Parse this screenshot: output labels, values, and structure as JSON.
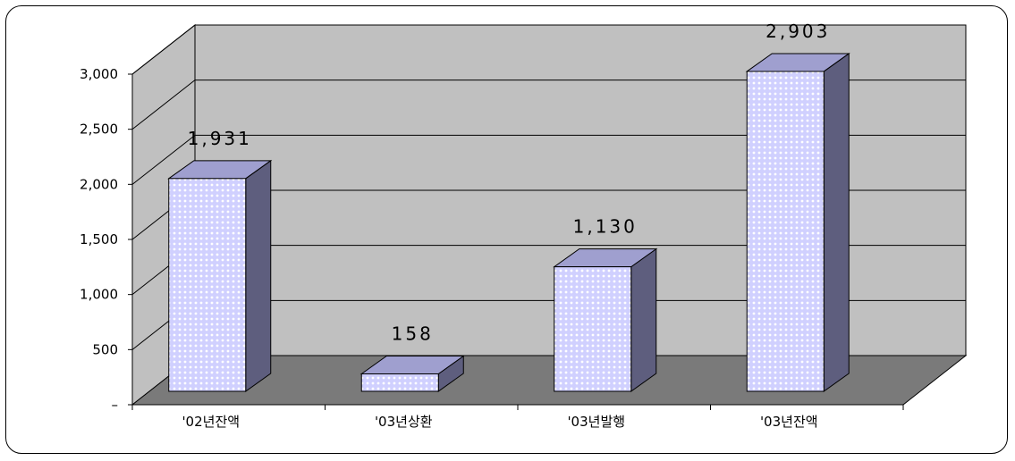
{
  "chart_data": {
    "type": "bar",
    "categories": [
      "'02년잔액",
      "'03년상환",
      "'03년발행",
      "'03년잔액"
    ],
    "values": [
      1931,
      158,
      1130,
      2903
    ],
    "data_labels": [
      "1,931",
      "158",
      "1,130",
      "2,903"
    ],
    "y_ticks": [
      "–",
      "500",
      "1,000",
      "1,500",
      "2,000",
      "2,500",
      "3,000"
    ],
    "ylim": [
      0,
      3000
    ],
    "three_d": true,
    "grid": true,
    "legend": "none",
    "title": "",
    "xlabel": "",
    "ylabel": "",
    "colors": {
      "bar_front": "#ccccff",
      "bar_top": "#9f9fcf",
      "bar_side": "#5e5e7e",
      "wall": "#c0c0c0",
      "floor": "#7a7a7a"
    }
  }
}
